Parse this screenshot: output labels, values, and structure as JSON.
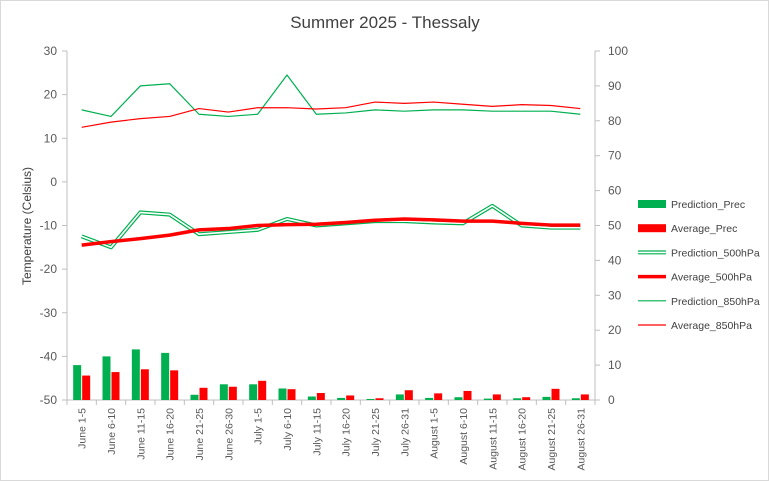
{
  "chart_data": {
    "type": "bar",
    "title": "Summer 2025 - Thessaly",
    "ylabel": "Temperature (Celsius)",
    "ylim": [
      -50,
      30
    ],
    "y2lim": [
      0,
      100
    ],
    "yticks": [
      30,
      20,
      10,
      0,
      -10,
      -20,
      -30,
      -40,
      -50
    ],
    "y2ticks": [
      100,
      90,
      80,
      70,
      60,
      50,
      40,
      30,
      20,
      10,
      0
    ],
    "grid": false,
    "legend_position": "right",
    "categories": [
      "June 1-5",
      "June 6-10",
      "June 11-15",
      "June 16-20",
      "June 21-25",
      "June 26-30",
      "July 1-5",
      "July 6-10",
      "July 11-15",
      "July 16-20",
      "July 21-25",
      "July 26-31",
      "August 1-5",
      "August 6-10",
      "August 11-15",
      "August 16-20",
      "August 21-25",
      "August 26-31"
    ],
    "series": [
      {
        "name": "Prediction_Prec",
        "kind": "bar",
        "axis": "right",
        "color": "#00b050",
        "values": [
          10,
          12.5,
          14.5,
          13.5,
          1.5,
          4.5,
          4.5,
          3.3,
          1,
          0.6,
          0.3,
          1.6,
          0.6,
          0.8,
          0.4,
          0.5,
          0.9,
          0.5
        ]
      },
      {
        "name": "Average_Prec",
        "kind": "bar",
        "axis": "right",
        "color": "#ff0000",
        "values": [
          7,
          8,
          8.8,
          8.5,
          3.5,
          3.8,
          5.5,
          3.1,
          2,
          1.3,
          0.5,
          2.8,
          1.9,
          2.6,
          1.6,
          0.8,
          3.2,
          1.6
        ]
      },
      {
        "name": "Prediction_500hPa",
        "kind": "line",
        "axis": "left",
        "style": "double",
        "color": "#00b050",
        "values": [
          -12.5,
          -15,
          -7,
          -7.5,
          -12,
          -11.5,
          -11,
          -8.5,
          -10,
          -9.5,
          -9,
          -9,
          -9.3,
          -9.5,
          -5.5,
          -10,
          -10.5,
          -10.5
        ]
      },
      {
        "name": "Average_500hPa",
        "kind": "line",
        "axis": "left",
        "style": "thick",
        "color": "#ff0000",
        "values": [
          -14.5,
          -13.7,
          -13,
          -12.2,
          -11,
          -10.7,
          -10,
          -9.8,
          -9.7,
          -9.3,
          -8.8,
          -8.5,
          -8.7,
          -9,
          -9,
          -9.5,
          -9.9,
          -9.9
        ]
      },
      {
        "name": "Prediction_850hPa",
        "kind": "line",
        "axis": "left",
        "style": "thin",
        "color": "#00b050",
        "values": [
          16.5,
          15,
          22,
          22.5,
          15.5,
          15,
          15.5,
          24.5,
          15.5,
          15.8,
          16.5,
          16.2,
          16.5,
          16.5,
          16.2,
          16.2,
          16.2,
          15.5
        ]
      },
      {
        "name": "Average_850hPa",
        "kind": "line",
        "axis": "left",
        "style": "thin",
        "color": "#ff0000",
        "values": [
          12.5,
          13.7,
          14.5,
          15,
          16.8,
          16,
          17,
          17,
          16.7,
          17,
          18.3,
          18,
          18.3,
          17.8,
          17.3,
          17.7,
          17.5,
          16.8
        ]
      }
    ]
  }
}
